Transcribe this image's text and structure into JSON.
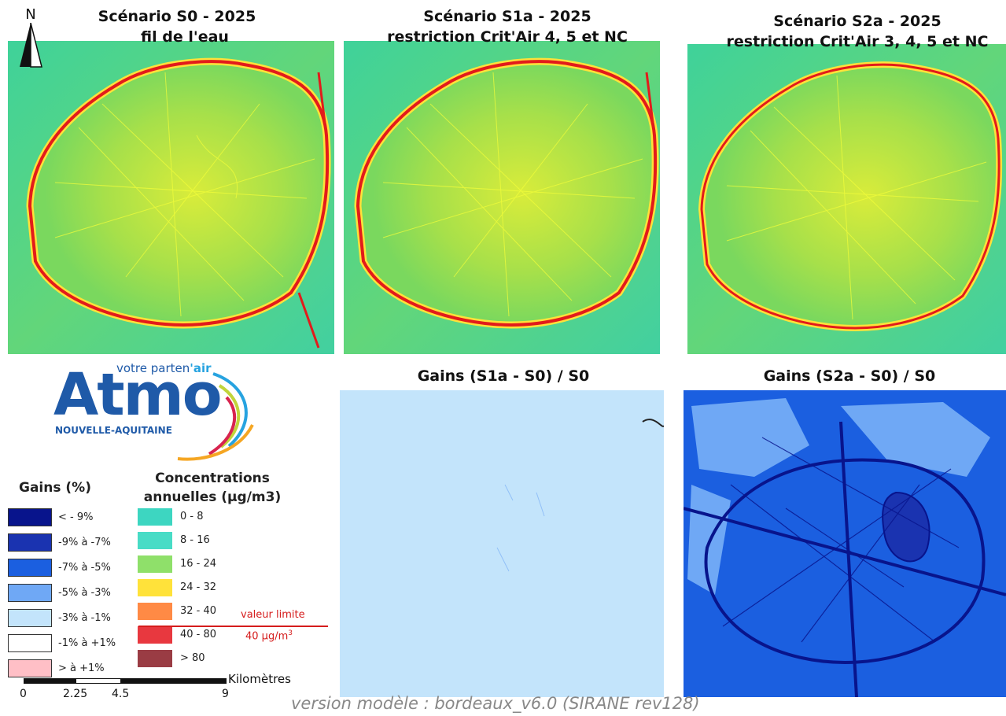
{
  "panels": [
    {
      "title_line1": "Scénario S0 - 2025",
      "title_line2": "fil de l'eau"
    },
    {
      "title_line1": "Scénario S1a - 2025",
      "title_line2": "restriction Crit'Air 4, 5 et NC"
    },
    {
      "title_line1": "Scénario S2a - 2025",
      "title_line2": "restriction Crit'Air 3, 4, 5 et NC"
    },
    {
      "title_line1": "Gains (S1a - S0) / S0"
    },
    {
      "title_line1": "Gains (S2a - S0) / S0"
    }
  ],
  "north_arrow": {
    "label": "N",
    "icon": "north-arrow-icon"
  },
  "logo": {
    "tagline_prefix": "votre parten",
    "tagline_suffix": "'air",
    "name": "Atmo",
    "region": "NOUVELLE-AQUITAINE",
    "icon": "atmo-logo"
  },
  "legend": {
    "gains_title": "Gains (%)",
    "gains": [
      {
        "label": "< - 9%",
        "color": "#08148c"
      },
      {
        "label": "-9% à -7%",
        "color": "#1a33b0"
      },
      {
        "label": "-7% à -5%",
        "color": "#1b5fe0"
      },
      {
        "label": "-5% à -3%",
        "color": "#6fa8f5"
      },
      {
        "label": "-3% à -1%",
        "color": "#c3e4fb"
      },
      {
        "label": "-1% à +1%",
        "color": "#ffffff"
      },
      {
        "label": "> à +1%",
        "color": "#ffbfc6"
      }
    ],
    "conc_title_line1": "Concentrations",
    "conc_title_line2": "annuelles (µg/m3)",
    "concentrations": [
      {
        "label": "0 - 8",
        "color": "#3dd6c1"
      },
      {
        "label": "8 - 16",
        "color": "#48dcc6"
      },
      {
        "label": "16 - 24",
        "color": "#8fe06a"
      },
      {
        "label": "24 - 32",
        "color": "#ffe23a"
      },
      {
        "label": "32 - 40",
        "color": "#ff8a45"
      },
      {
        "label": "40 - 80",
        "color": "#e8383f"
      },
      {
        "label": "> 80",
        "color": "#9a3c44"
      }
    ],
    "limit_label_line1": "valeur limite",
    "limit_label_line2": "40 µg/m",
    "limit_label_sup": "3"
  },
  "scalebar": {
    "unit": "Kilomètres",
    "ticks": [
      "0",
      "2.25",
      "4.5",
      "9"
    ]
  },
  "footer": "version modèle : bordeaux_v6.0 (SIRANE rev128)"
}
